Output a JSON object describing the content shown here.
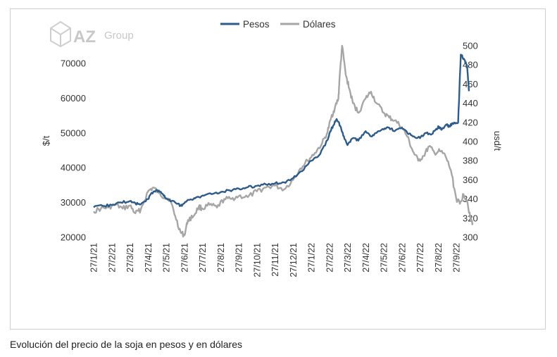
{
  "caption": "Evolución del precio de la soja en pesos y en dólares",
  "logo": {
    "brand": "AZ",
    "suffix": "Group"
  },
  "colors": {
    "pesos": "#2e5c8a",
    "dolares": "#a6a6a6",
    "text": "#333333"
  },
  "chart_data": {
    "type": "line",
    "title": "",
    "legend": {
      "placement": "top-center",
      "entries": [
        "Pesos",
        "Dólares"
      ]
    },
    "ylabel_left": "$/t",
    "ylabel_right": "usd/t",
    "ylim_left": [
      20000,
      70000
    ],
    "ylim_right": [
      300,
      500
    ],
    "yticks_left": [
      "20000",
      "30000",
      "40000",
      "50000",
      "60000",
      "70000"
    ],
    "yticks_right": [
      "300",
      "320",
      "340",
      "360",
      "380",
      "400",
      "420",
      "440",
      "460",
      "480",
      "500"
    ],
    "xticks": [
      "27/1/21",
      "27/2/21",
      "27/3/21",
      "27/4/21",
      "27/5/21",
      "27/6/21",
      "27/7/21",
      "27/8/21",
      "27/9/21",
      "27/10/21",
      "27/11/21",
      "27/12/21",
      "27/1/22",
      "27/2/22",
      "27/3/22",
      "27/4/22",
      "27/5/22",
      "27/6/22",
      "27/7/22",
      "27/8/22",
      "27/9/22"
    ],
    "grid": false,
    "series": [
      {
        "name": "Pesos",
        "axis": "left",
        "x": [
          0,
          0.5,
          1,
          1.5,
          2,
          2.3,
          2.6,
          3,
          3.2,
          3.5,
          3.8,
          4,
          4.5,
          4.8,
          5,
          5.3,
          5.6,
          6,
          6.5,
          7,
          7.5,
          8,
          8.5,
          9,
          9.5,
          10,
          10.5,
          11,
          11.5,
          12,
          12.5,
          12.9,
          13.05,
          13.2,
          13.4,
          13.6,
          13.8,
          14,
          14.3,
          14.6,
          15,
          15.3,
          15.6,
          16,
          16.3,
          16.6,
          17,
          17.3,
          17.6,
          18,
          18.3,
          18.6,
          18.9,
          19.05,
          19.2,
          19.5,
          19.6,
          19.75,
          19.9,
          20.1,
          20.25,
          20.45,
          20.6,
          20.7
        ],
        "values": [
          28600,
          29000,
          29300,
          30000,
          30400,
          29800,
          29500,
          31000,
          32800,
          33600,
          32500,
          31200,
          30000,
          29100,
          29800,
          30800,
          31200,
          32000,
          32400,
          33000,
          33500,
          34000,
          34400,
          34800,
          35200,
          35500,
          35800,
          37000,
          39000,
          42000,
          44000,
          48000,
          50500,
          52000,
          54000,
          52000,
          49000,
          46500,
          48500,
          47800,
          50500,
          49000,
          50000,
          51000,
          51500,
          50500,
          51500,
          50000,
          49000,
          48500,
          50000,
          49500,
          51200,
          51800,
          51000,
          52500,
          51800,
          52500,
          52800,
          53000,
          72500,
          71000,
          69000,
          62000
        ],
        "y_extra_points": [
          [
            20.3,
            67500
          ],
          [
            20.5,
            69500
          ],
          [
            20.6,
            71000
          ],
          [
            20.7,
            70000
          ],
          [
            20.8,
            63000
          ],
          [
            20.85,
            62500
          ],
          [
            20.9,
            63000
          ]
        ]
      },
      {
        "name": "Dólares",
        "axis": "right",
        "x": [
          0,
          0.4,
          0.8,
          1.2,
          1.6,
          2,
          2.3,
          2.6,
          3,
          3.3,
          3.6,
          3.9,
          4.2,
          4.5,
          4.8,
          5,
          5.2,
          5.5,
          5.8,
          6,
          6.4,
          6.8,
          7.2,
          7.6,
          8,
          8.5,
          9,
          9.5,
          10,
          10.5,
          11,
          11.4,
          11.8,
          12.2,
          12.6,
          12.9,
          13.1,
          13.3,
          13.5,
          13.55,
          13.7,
          13.9,
          14.1,
          14.3,
          14.6,
          15,
          15.3,
          15.6,
          16,
          16.3,
          16.6,
          17,
          17.3,
          17.6,
          17.9,
          18.2,
          18.5,
          18.8,
          19.1,
          19.4,
          19.7,
          20,
          20.2,
          20.4,
          20.6,
          20.8,
          20.9
        ],
        "values": [
          327,
          330,
          331,
          334,
          330,
          333,
          325,
          329,
          348,
          352,
          346,
          342,
          340,
          322,
          305,
          302,
          318,
          322,
          332,
          330,
          334,
          331,
          340,
          340,
          343,
          342,
          348,
          352,
          354,
          350,
          360,
          372,
          380,
          388,
          398,
          410,
          425,
          435,
          445,
          463,
          500,
          470,
          455,
          440,
          430,
          445,
          452,
          440,
          430,
          425,
          422,
          415,
          405,
          390,
          380,
          385,
          395,
          388,
          390,
          385,
          370,
          340,
          335,
          345,
          338,
          318,
          315
        ]
      }
    ]
  }
}
